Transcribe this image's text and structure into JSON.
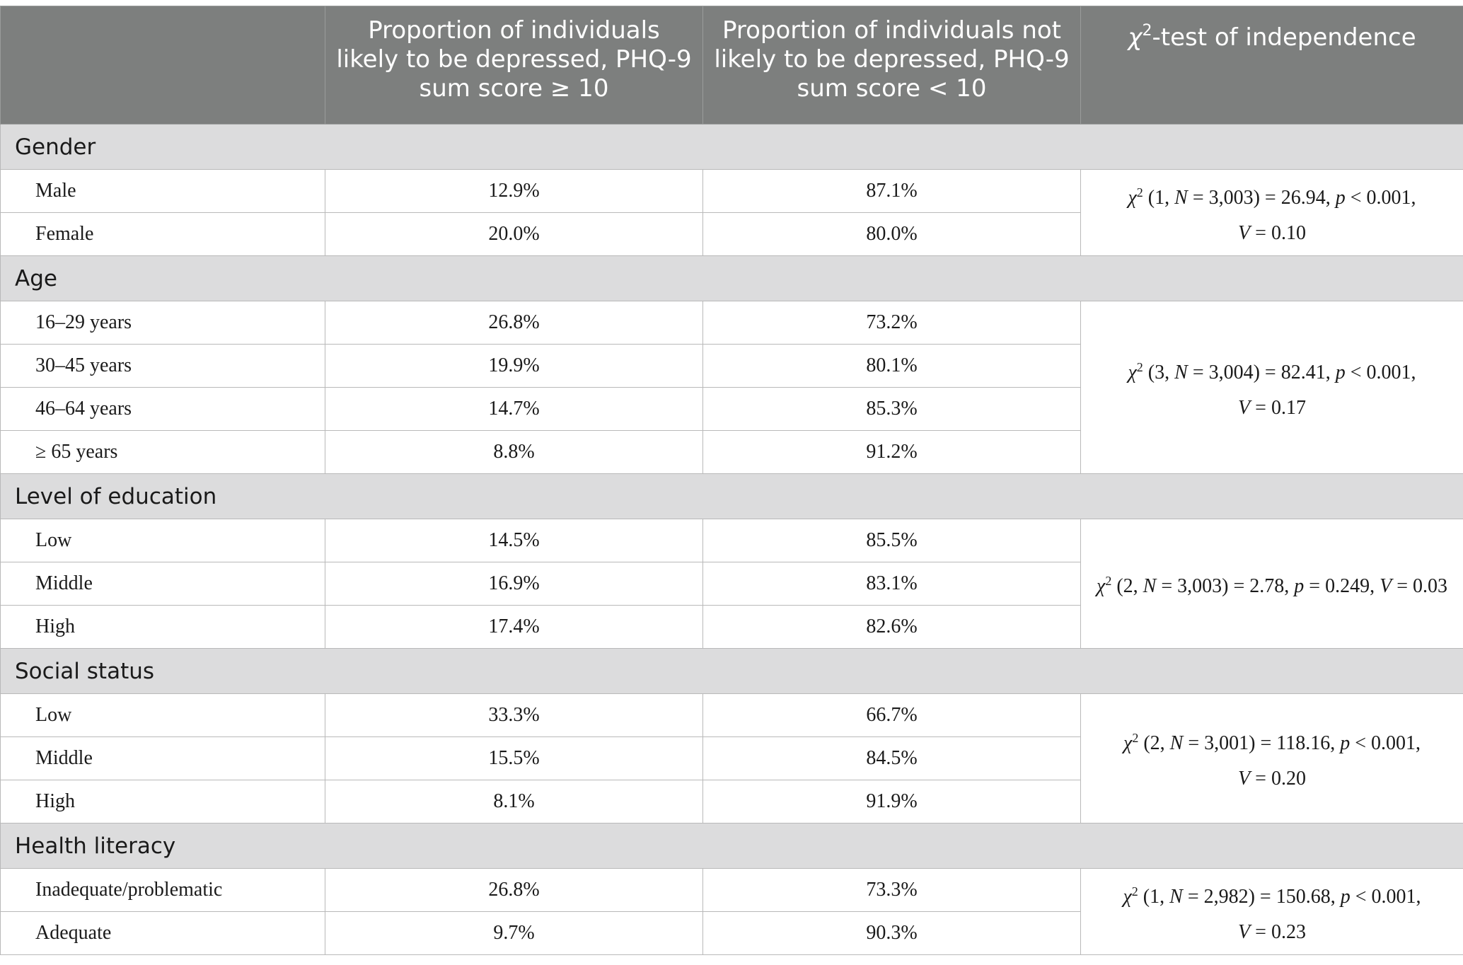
{
  "header": {
    "col0": "",
    "col1": "Proportion of individuals likely to be depressed, PHQ-9 sum score ≥ 10",
    "col2": "Proportion of individuals not likely to be depressed, PHQ-9 sum score < 10",
    "col3_symbol": "χ",
    "col3_sup": "2",
    "col3_text": "-test of independence"
  },
  "groups": [
    {
      "label": "Gender",
      "rows": [
        {
          "label": "Male",
          "likely": "12.9%",
          "not_likely": "87.1%"
        },
        {
          "label": "Female",
          "likely": "20.0%",
          "not_likely": "80.0%"
        }
      ],
      "test": {
        "df": "1",
        "n": "3,003",
        "chi": "26.94",
        "p": "< 0.001",
        "v": "0.10"
      }
    },
    {
      "label": "Age",
      "rows": [
        {
          "label": "16–29 years",
          "likely": "26.8%",
          "not_likely": "73.2%"
        },
        {
          "label": "30–45 years",
          "likely": "19.9%",
          "not_likely": "80.1%"
        },
        {
          "label": "46–64 years",
          "likely": "14.7%",
          "not_likely": "85.3%"
        },
        {
          "label": "≥ 65 years",
          "likely": "8.8%",
          "not_likely": "91.2%"
        }
      ],
      "test": {
        "df": "3",
        "n": "3,004",
        "chi": "82.41",
        "p": "< 0.001",
        "v": "0.17"
      }
    },
    {
      "label": "Level of education",
      "rows": [
        {
          "label": "Low",
          "likely": "14.5%",
          "not_likely": "85.5%"
        },
        {
          "label": "Middle",
          "likely": "16.9%",
          "not_likely": "83.1%"
        },
        {
          "label": "High",
          "likely": "17.4%",
          "not_likely": "82.6%"
        }
      ],
      "test": {
        "df": "2",
        "n": "3,003",
        "chi": "2.78",
        "p": "= 0.249",
        "v": "0.03"
      }
    },
    {
      "label": "Social status",
      "rows": [
        {
          "label": "Low",
          "likely": "33.3%",
          "not_likely": "66.7%"
        },
        {
          "label": "Middle",
          "likely": "15.5%",
          "not_likely": "84.5%"
        },
        {
          "label": "High",
          "likely": "8.1%",
          "not_likely": "91.9%"
        }
      ],
      "test": {
        "df": "2",
        "n": "3,001",
        "chi": "118.16",
        "p": "< 0.001",
        "v": "0.20"
      }
    },
    {
      "label": "Health literacy",
      "rows": [
        {
          "label": "Inadequate/problematic",
          "likely": "26.8%",
          "not_likely": "73.3%"
        },
        {
          "label": "Adequate",
          "likely": "9.7%",
          "not_likely": "90.3%"
        }
      ],
      "test": {
        "df": "1",
        "n": "2,982",
        "chi": "150.68",
        "p": "< 0.001",
        "v": "0.23"
      }
    }
  ]
}
